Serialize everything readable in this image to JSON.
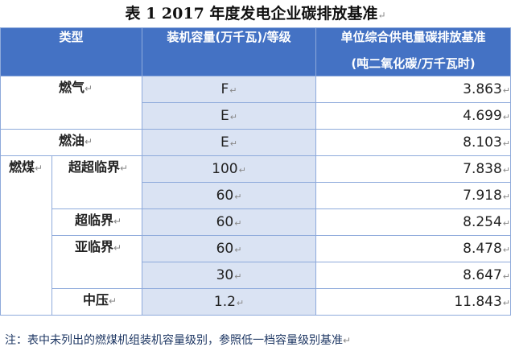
{
  "title": "表 1   2017 年度发电企业碳排放基准",
  "para_mark": "↵",
  "header": {
    "type": "类型",
    "capacity": "装机容量(万千瓦)/等级",
    "benchmark_line1": "单位综合供电量碳排放基准",
    "benchmark_line2": "(吨二氧化碳/万千瓦时)"
  },
  "categories": {
    "gas": "燃气",
    "oil": "燃油",
    "coal": "燃煤",
    "ultra_supercritical": "超超临界",
    "supercritical": "超临界",
    "subcritical": "亚临界",
    "medium_pressure": "中压"
  },
  "rows": [
    {
      "capacity": "F",
      "value": "3.863"
    },
    {
      "capacity": "E",
      "value": "4.699"
    },
    {
      "capacity": "E",
      "value": "8.103"
    },
    {
      "capacity": "100",
      "value": "7.838"
    },
    {
      "capacity": "60",
      "value": "7.918"
    },
    {
      "capacity": "60",
      "value": "8.254"
    },
    {
      "capacity": "60",
      "value": "8.478"
    },
    {
      "capacity": "30",
      "value": "8.647"
    },
    {
      "capacity": "1.2",
      "value": "11.843"
    }
  ],
  "note": "注：表中未列出的燃煤机组装机容量级别，参照低一档容量级别基准"
}
